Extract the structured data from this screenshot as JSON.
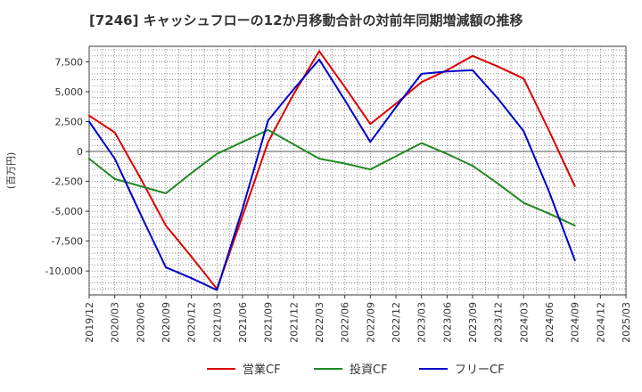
{
  "chart_data": {
    "type": "line",
    "title": "[7246]  キャッシュフローの12か月移動合計の対前年同期増減額の推移",
    "ylabel": "(百万円)",
    "xlabel": "",
    "ylim": [
      -12000,
      8800
    ],
    "yticks": [
      7500,
      5000,
      2500,
      0,
      -2500,
      -5000,
      -7500,
      -10000
    ],
    "ytick_labels": [
      "7,500",
      "5,000",
      "2,500",
      "0",
      "-2,500",
      "-5,000",
      "-7,500",
      "-10,000"
    ],
    "categories": [
      "2019/12",
      "2020/03",
      "2020/06",
      "2020/09",
      "2020/12",
      "2021/03",
      "2021/06",
      "2021/09",
      "2021/12",
      "2022/03",
      "2022/06",
      "2022/09",
      "2022/12",
      "2023/03",
      "2023/06",
      "2023/09",
      "2023/12",
      "2024/03",
      "2024/06",
      "2024/09",
      "2024/12",
      "2025/03"
    ],
    "series": [
      {
        "name": "営業CF",
        "color": "#dd0000",
        "values": [
          3000,
          1600,
          -2200,
          -6200,
          -8800,
          -11500,
          -5400,
          800,
          4800,
          8400,
          5400,
          2300,
          4000,
          5800,
          6800,
          8000,
          7100,
          6100,
          1700,
          -2900,
          null,
          null
        ]
      },
      {
        "name": "投資CF",
        "color": "#228822",
        "values": [
          -600,
          -2300,
          -2900,
          -3500,
          -1800,
          -200,
          800,
          1800,
          600,
          -600,
          -1000,
          -1500,
          -400,
          700,
          -200,
          -1200,
          -2700,
          -4300,
          -5200,
          -6200,
          null,
          null
        ]
      },
      {
        "name": "フリーCF",
        "color": "#0000cc",
        "values": [
          2500,
          -600,
          -5200,
          -9700,
          -10600,
          -11600,
          -4800,
          2600,
          5200,
          7700,
          4300,
          800,
          3700,
          6500,
          6700,
          6800,
          4400,
          1700,
          -3400,
          -9100,
          null,
          null
        ]
      }
    ],
    "legend_position": "bottom-center",
    "grid": true
  }
}
